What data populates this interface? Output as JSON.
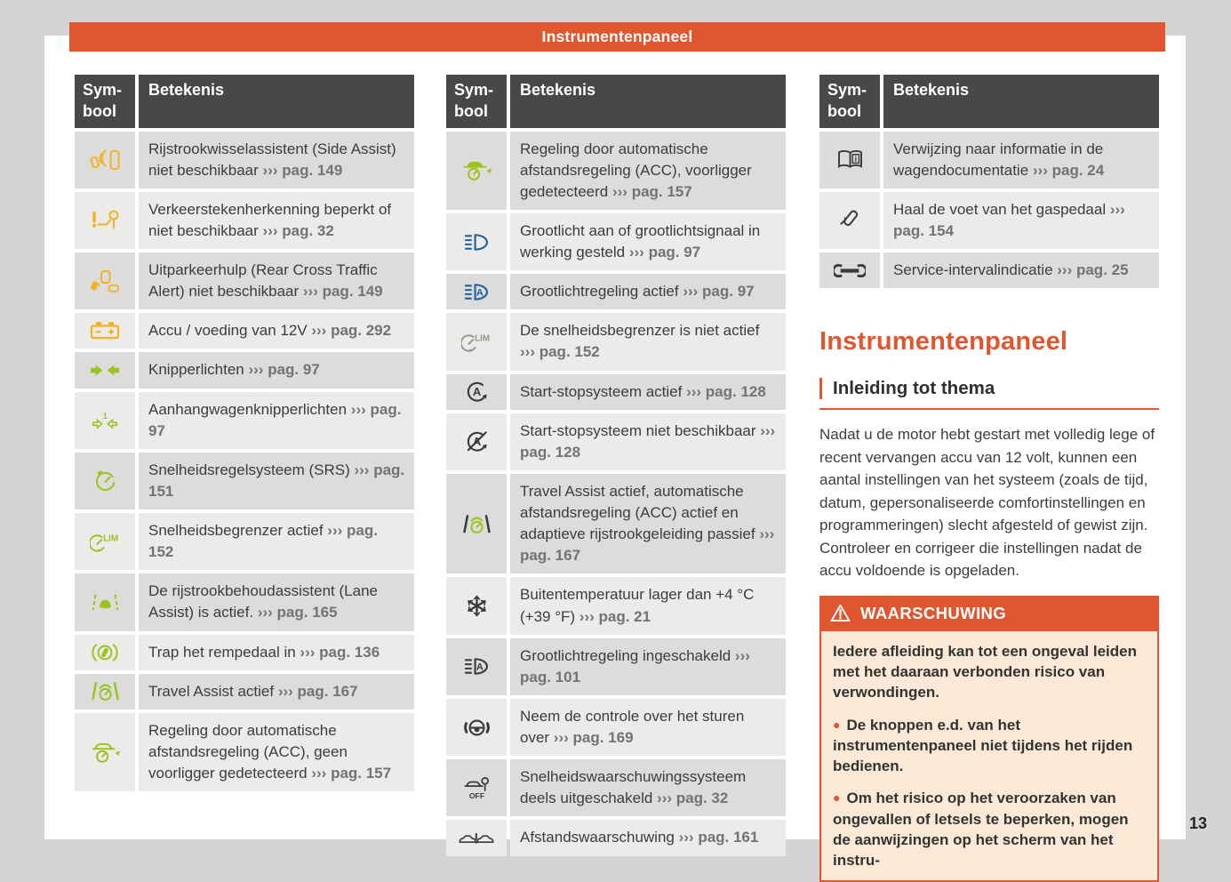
{
  "banner": {
    "title": "Instrumentenpaneel"
  },
  "page_number": "13",
  "ref_arrow": "›››",
  "table_header": {
    "symbol": "Sym-bool",
    "meaning": "Betekenis"
  },
  "icon_colors": {
    "yellow": "#f0b323",
    "green": "#9ac31e",
    "blue": "#1e5fa0",
    "dark": "#3a3a38",
    "gray": "#96948e",
    "orange": "#e0562e"
  },
  "tables": [
    {
      "rows": [
        {
          "icon": "side-assist",
          "color": "#f0b323",
          "text": "Rijstrookwisselassistent (Side Assist) niet beschikbaar",
          "ref": "pag. 149"
        },
        {
          "icon": "traffic-sign-recognition",
          "color": "#f0b323",
          "text": "Verkeerstekenherkenning beperkt of niet beschikbaar",
          "ref": "pag. 32"
        },
        {
          "icon": "rear-cross-traffic",
          "color": "#f0b323",
          "text": "Uitparkeerhulp (Rear Cross Traffic Alert) niet beschikbaar",
          "ref": "pag. 149"
        },
        {
          "icon": "battery",
          "color": "#f0b323",
          "text": "Accu / voeding van 12V",
          "ref": "pag. 292"
        },
        {
          "icon": "turn-signals",
          "color": "#9ac31e",
          "text": "Knipperlichten",
          "ref": "pag. 97"
        },
        {
          "icon": "trailer-turn-signals",
          "color": "#9ac31e",
          "text": "Aanhangwagenknipperlichten",
          "ref": "pag. 97"
        },
        {
          "icon": "cruise-control",
          "color": "#9ac31e",
          "text": "Snelheidsregelsysteem (SRS)",
          "ref": "pag. 151"
        },
        {
          "icon": "speed-limiter",
          "color": "#9ac31e",
          "text": "Snelheidsbegrenzer actief",
          "ref": "pag. 152"
        },
        {
          "icon": "lane-assist",
          "color": "#9ac31e",
          "text": "De rijstrookbehoudassistent (Lane Assist) is actief.",
          "ref": "pag. 165"
        },
        {
          "icon": "brake-pedal",
          "color": "#9ac31e",
          "text": "Trap het rempedaal in",
          "ref": "pag. 136"
        },
        {
          "icon": "travel-assist",
          "color": "#9ac31e",
          "text": "Travel Assist actief",
          "ref": "pag. 167"
        },
        {
          "icon": "acc-no-vehicle",
          "color": "#9ac31e",
          "text": "Regeling door automatische afstandsregeling (ACC), geen voorligger gedetecteerd",
          "ref": "pag. 157"
        }
      ]
    },
    {
      "rows": [
        {
          "icon": "acc-vehicle-detected",
          "color": "#9ac31e",
          "text": "Regeling door automatische afstandsregeling (ACC), voorligger gedetecteerd",
          "ref": "pag. 157"
        },
        {
          "icon": "high-beam",
          "color": "#1e5fa0",
          "text": "Grootlicht aan of grootlichtsignaal in werking gesteld",
          "ref": "pag. 97"
        },
        {
          "icon": "high-beam-auto",
          "color": "#1e5fa0",
          "text": "Grootlichtregeling actief",
          "ref": "pag. 97"
        },
        {
          "icon": "speed-limiter",
          "color": "#96948e",
          "text": "De snelheidsbegrenzer is niet actief",
          "ref": "pag. 152"
        },
        {
          "icon": "start-stop-active",
          "color": "#3a3a38",
          "text": "Start-stopsysteem actief",
          "ref": "pag. 128"
        },
        {
          "icon": "start-stop-unavailable",
          "color": "#3a3a38",
          "text": "Start-stopsysteem niet beschikbaar",
          "ref": "pag. 128"
        },
        {
          "icon": "travel-assist-passive",
          "color": "#9ac31e",
          "text": "Travel Assist actief, automatische afstandsregeling (ACC) actief en adaptieve rijstrookgeleiding passief",
          "ref": "pag. 167"
        },
        {
          "icon": "snowflake",
          "color": "#3a3a38",
          "text": "Buitentemperatuur lager dan +4 °C (+39 °F)",
          "ref": "pag. 21"
        },
        {
          "icon": "high-beam-auto",
          "color": "#3a3a38",
          "text": "Grootlichtregeling ingeschakeld",
          "ref": "pag. 101"
        },
        {
          "icon": "steering-takeover",
          "color": "#3a3a38",
          "text": "Neem de controle over het sturen over",
          "ref": "pag. 169"
        },
        {
          "icon": "speed-warning-off",
          "color": "#3a3a38",
          "text": "Snelheidswaarschuwingssysteem deels uitgeschakeld",
          "ref": "pag. 32"
        },
        {
          "icon": "distance-warning",
          "color": "#3a3a38",
          "text": "Afstandswaarschuwing",
          "ref": "pag. 161"
        }
      ]
    },
    {
      "rows": [
        {
          "icon": "book-info",
          "color": "#3a3a38",
          "text": "Verwijzing naar informatie in de wagendocumentatie",
          "ref": "pag. 24"
        },
        {
          "icon": "foot-off-pedal",
          "color": "#3a3a38",
          "text": "Haal de voet van het gaspedaal",
          "ref": "pag. 154"
        },
        {
          "icon": "service-wrench",
          "color": "#3a3a38",
          "text": "Service-intervalindicatie",
          "ref": "pag. 25"
        }
      ]
    }
  ],
  "article": {
    "heading": "Instrumentenpaneel",
    "subheading": "Inleiding tot thema",
    "paragraph": "Nadat u de motor hebt gestart met volledig lege of recent vervangen accu van 12 volt, kunnen een aantal instellingen van het systeem (zoals de tijd, datum, gepersonaliseerde comfortinstellingen en programmeringen) slecht afgesteld of gewist zijn. Controleer en corrigeer die instellingen nadat de accu voldoende is opgeladen."
  },
  "warning": {
    "title": "WAARSCHUWING",
    "lead": "Iedere afleiding kan tot een ongeval leiden met het daaraan verbonden risico van verwondingen.",
    "bullets": [
      "De knoppen e.d. van het instrumentenpaneel niet tijdens het rijden bedienen.",
      "Om het risico op het veroorzaken van ongevallen of letsels te beperken, mogen de aanwijzingen op het scherm van het instru-"
    ]
  }
}
